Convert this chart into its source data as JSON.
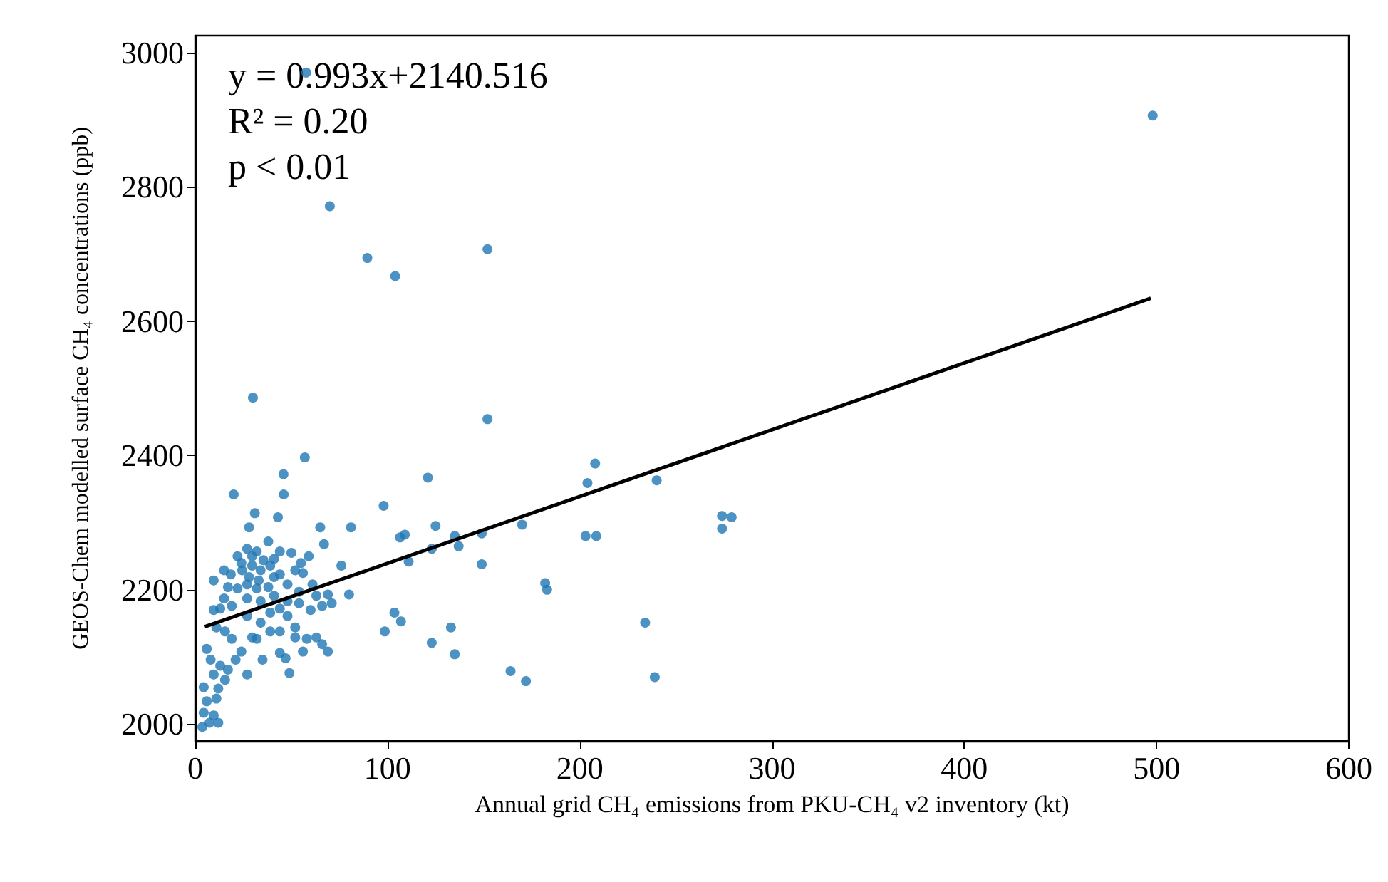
{
  "chart_data": {
    "type": "scatter",
    "xlabel": "Annual grid CH₄ emissions from PKU-CH₄ v2 inventory (kt)",
    "ylabel": "GEOS-Chem modelled surface CH₄ concentrations (ppb)",
    "annotations": [
      "y = 0.993x+2140.516",
      "R² = 0.20",
      "p < 0.01"
    ],
    "xlim": [
      0,
      600
    ],
    "ylim": [
      1975,
      3025
    ],
    "xticks": [
      0,
      100,
      200,
      300,
      400,
      500,
      600
    ],
    "yticks": [
      2000,
      2200,
      2400,
      2600,
      2800,
      3000
    ],
    "grid": false,
    "marker": "circle",
    "series": [
      {
        "color": "#1f77b4",
        "x": [
          57.7,
          70,
          89.5,
          104,
          152,
          498,
          30,
          152,
          57,
          121,
          208,
          204,
          240,
          274,
          279,
          274,
          98,
          106.5,
          109,
          125,
          135,
          137,
          123,
          111,
          149,
          149,
          170,
          182,
          183,
          203,
          208.6,
          103.6,
          107,
          98.6,
          133,
          123,
          135,
          164,
          172,
          234,
          239,
          45.9,
          20,
          46,
          31,
          43,
          28,
          65,
          67,
          81,
          22,
          27,
          32,
          38,
          44,
          50,
          55,
          56,
          63,
          15,
          9.6,
          18.5,
          24.4,
          29.6,
          34,
          39,
          44,
          48,
          27,
          32,
          38,
          22,
          17,
          15,
          19,
          27,
          34,
          41,
          54,
          61,
          76,
          80,
          71,
          66,
          69,
          9.6,
          13,
          11,
          27,
          34,
          39,
          44,
          48,
          52,
          60,
          63,
          58,
          56,
          66,
          69,
          44,
          47,
          35,
          27,
          24,
          21,
          49,
          32,
          19,
          15.5,
          6,
          8,
          13,
          17,
          9.6,
          4.4,
          12,
          15.5,
          6,
          11,
          4.4,
          9.6,
          3.7,
          12,
          7.4,
          29.6,
          35.5,
          41,
          24,
          33,
          41,
          28,
          52,
          59,
          54,
          48,
          39,
          44,
          29.6,
          52
        ],
        "values": [
          2970,
          2771,
          2694,
          2667,
          2707,
          2906,
          2486,
          2454,
          2397,
          2367,
          2388,
          2359,
          2363,
          2310,
          2308,
          2291,
          2325,
          2278,
          2282,
          2295,
          2280,
          2265,
          2261,
          2242,
          2284,
          2238,
          2297,
          2210,
          2200,
          2280,
          2280,
          2166,
          2153,
          2138,
          2144,
          2121,
          2104,
          2079,
          2064,
          2151,
          2070,
          2372,
          2342,
          2342,
          2314,
          2308,
          2293,
          2293,
          2268,
          2293,
          2250,
          2261,
          2257,
          2272,
          2257,
          2255,
          2240,
          2225,
          2191,
          2229,
          2214,
          2223,
          2229,
          2236,
          2229,
          2236,
          2223,
          2208,
          2208,
          2202,
          2204,
          2202,
          2204,
          2187,
          2176,
          2187,
          2183,
          2191,
          2197,
          2208,
          2236,
          2193,
          2180,
          2176,
          2193,
          2170,
          2172,
          2144,
          2161,
          2151,
          2166,
          2172,
          2161,
          2144,
          2170,
          2129,
          2127,
          2108,
          2119,
          2108,
          2106,
          2098,
          2096,
          2074,
          2108,
          2096,
          2076,
          2127,
          2127,
          2138,
          2112,
          2096,
          2087,
          2081,
          2074,
          2055,
          2053,
          2066,
          2034,
          2038,
          2017,
          2013,
          1996,
          2002,
          2002,
          2250,
          2244,
          2246,
          2240,
          2214,
          2219,
          2219,
          2229,
          2250,
          2180,
          2183,
          2138,
          2138,
          2129,
          2129
        ]
      },
      {
        "type": "line",
        "color": "#000000",
        "marker": "none",
        "x": [
          5,
          497
        ],
        "values": [
          2145,
          2634
        ]
      }
    ]
  }
}
